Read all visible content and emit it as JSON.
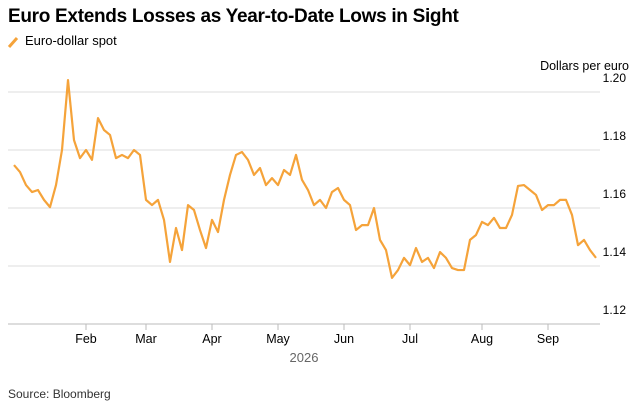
{
  "chart_data": {
    "type": "line",
    "title": "Euro Extends Losses as Year-to-Date Lows in Sight",
    "y_label": "Dollars per euro",
    "x_label": "2026",
    "source": "Source: Bloomberg",
    "categories": [
      null,
      null,
      null,
      null,
      null,
      null,
      null,
      null,
      null,
      null,
      null,
      null,
      "Feb",
      null,
      null,
      null,
      null,
      null,
      null,
      null,
      null,
      null,
      "Mar",
      null,
      null,
      null,
      null,
      null,
      null,
      null,
      null,
      null,
      null,
      "Apr",
      null,
      null,
      null,
      null,
      null,
      null,
      null,
      null,
      null,
      null,
      "May",
      null,
      null,
      null,
      null,
      null,
      null,
      null,
      null,
      null,
      null,
      "Jun",
      null,
      null,
      null,
      null,
      null,
      null,
      null,
      null,
      null,
      null,
      "Jul",
      null,
      null,
      null,
      null,
      null,
      null,
      null,
      null,
      null,
      null,
      null,
      "Aug",
      null,
      null,
      null,
      null,
      null,
      null,
      null,
      null,
      null,
      null,
      "Sep",
      null,
      null,
      null,
      null,
      null,
      null,
      null,
      null
    ],
    "series": [
      {
        "name": "Euro-dollar spot",
        "color": "#f5a33a",
        "values": [
          1.1748,
          1.1724,
          1.1679,
          1.1655,
          1.1662,
          1.1628,
          1.1603,
          1.1679,
          1.18,
          1.2041,
          1.1834,
          1.1772,
          1.18,
          1.1766,
          1.191,
          1.1869,
          1.1852,
          1.1772,
          1.1783,
          1.1772,
          1.18,
          1.1783,
          1.1628,
          1.161,
          1.1628,
          1.1559,
          1.1414,
          1.1531,
          1.1455,
          1.161,
          1.1593,
          1.1524,
          1.1462,
          1.1559,
          1.1517,
          1.1628,
          1.1714,
          1.1783,
          1.1793,
          1.1766,
          1.1714,
          1.1738,
          1.1679,
          1.1703,
          1.1679,
          1.1731,
          1.1714,
          1.1783,
          1.1697,
          1.1662,
          1.161,
          1.1628,
          1.16,
          1.1655,
          1.1669,
          1.1628,
          1.161,
          1.1524,
          1.1541,
          1.1541,
          1.16,
          1.149,
          1.1455,
          1.1359,
          1.1386,
          1.1428,
          1.1403,
          1.1462,
          1.1414,
          1.1428,
          1.1393,
          1.1448,
          1.1428,
          1.1393,
          1.1386,
          1.1386,
          1.149,
          1.1507,
          1.1552,
          1.1541,
          1.1566,
          1.1531,
          1.1531,
          1.1576,
          1.1676,
          1.1679,
          1.1662,
          1.1645,
          1.1593,
          1.161,
          1.161,
          1.1628,
          1.1628,
          1.1576,
          1.1472,
          1.149,
          1.1455,
          1.1428
        ]
      }
    ],
    "ylim": [
      1.12,
      1.2
    ],
    "yticks": [
      1.12,
      1.14,
      1.16,
      1.18,
      {
        "value": 1.2,
        "label": "1.20"
      }
    ],
    "grid": true
  }
}
